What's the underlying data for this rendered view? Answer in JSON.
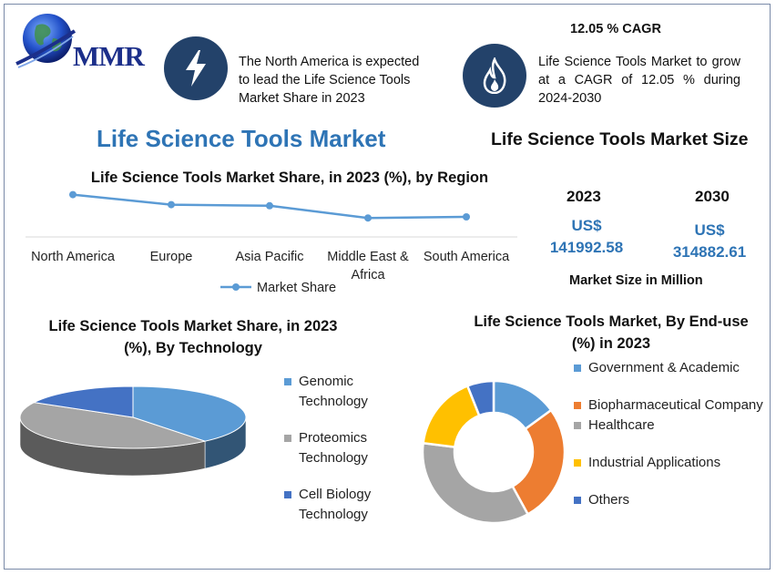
{
  "brand": {
    "name": "MMR"
  },
  "colors": {
    "title_blue": "#2e74b5",
    "icon_navy": "#23426a",
    "line_blue": "#5b9bd5",
    "orange": "#ed7d31",
    "gray": "#a5a5a5",
    "yellow": "#ffc000",
    "dark_blue": "#4472c4"
  },
  "facts": {
    "region_fact": "The North America is expected to lead the Life Science Tools Market Share in 2023",
    "cagr_title": "12.05 % CAGR",
    "cagr_fact": "Life Science Tools Market to grow at a CAGR of 12.05 % during 2024-2030",
    "region_icon": "lightning-bolt-icon",
    "cagr_icon": "flame-icon"
  },
  "main_title": "Life Science Tools Market",
  "market_size": {
    "title": "Life Science Tools Market Size",
    "years": [
      {
        "year": "2023",
        "currency": "US$",
        "value": "141992.58"
      },
      {
        "year": "2030",
        "currency": "US$",
        "value": "314882.61"
      }
    ],
    "unit_label": "Market Size in Million"
  },
  "chart_data": [
    {
      "type": "line",
      "title": "Life Science Tools Market Share, in 2023 (%), by Region",
      "categories": [
        "North America",
        "Europe",
        "Asia Pacific",
        "Middle East & Africa",
        "South America"
      ],
      "series": [
        {
          "name": "Market Share",
          "values": [
            38,
            29,
            28,
            17,
            18
          ]
        }
      ],
      "ylim": [
        0,
        45
      ],
      "legend": "bottom",
      "grid": false
    },
    {
      "type": "pie",
      "title": "Life Science Tools Market Share, in 2023 (%), By Technology",
      "labels": [
        "Genomic Technology",
        "Proteomics Technology",
        "Cell Biology Technology"
      ],
      "values": [
        39,
        44,
        17
      ],
      "colors": [
        "#5b9bd5",
        "#a5a5a5",
        "#4472c4"
      ],
      "style": "3d",
      "legend": "right"
    },
    {
      "type": "pie",
      "title": "Life Science Tools Market, By End-use (%) in 2023",
      "labels": [
        "Government & Academic",
        "Biopharmaceutical Company",
        "Healthcare",
        "Industrial Applications",
        "Others"
      ],
      "values": [
        15,
        27,
        35,
        17,
        6
      ],
      "colors": [
        "#5b9bd5",
        "#ed7d31",
        "#a5a5a5",
        "#ffc000",
        "#4472c4"
      ],
      "style": "donut",
      "legend": "right"
    }
  ]
}
